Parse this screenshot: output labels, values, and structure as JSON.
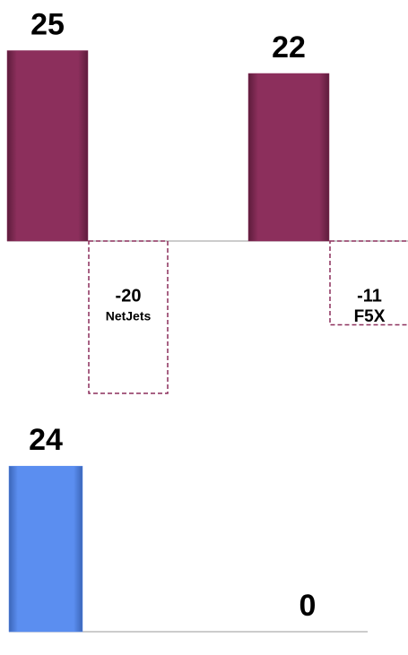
{
  "chart_data": [
    {
      "type": "bar",
      "categories": [
        null,
        "NetJets",
        null,
        "F5X"
      ],
      "values": [
        25,
        -20,
        22,
        -11
      ],
      "color": "#8c2f5c"
    },
    {
      "type": "bar",
      "categories": [
        null,
        null
      ],
      "values": [
        24,
        0
      ],
      "color": "#5b8ef0"
    }
  ]
}
